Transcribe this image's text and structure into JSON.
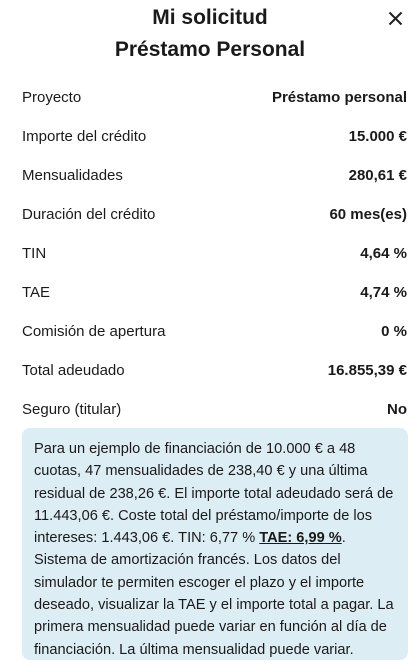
{
  "header": {
    "title": "Mi solicitud",
    "subtitle": "Préstamo Personal"
  },
  "rows": [
    [
      "Proyecto",
      "Préstamo personal"
    ],
    [
      "Importe del crédito",
      "15.000 €"
    ],
    [
      "Mensualidades",
      "280,61 €"
    ],
    [
      "Duración del crédito",
      "60 mes(es)"
    ],
    [
      "TIN",
      "4,64 %"
    ],
    [
      "TAE",
      "4,74 %"
    ],
    [
      "Comisión de apertura",
      "0 %"
    ],
    [
      "Total adeudado",
      "16.855,39 €"
    ],
    [
      "Seguro (titular)",
      "No"
    ]
  ],
  "note": {
    "before": "Para un ejemplo de financiación de 10.000 € a 48 cuotas, 47 mensualidades de 238,40 € y una última residual de 238,26 €. El importe total adeudado será de 11.443,06 €. Coste total del préstamo/importe de los intereses: 1.443,06 €. TIN: 6,77 % ",
    "emphasis": "TAE: 6,99 %",
    "after": ". Sistema de amortización francés. Los datos del simulador te permiten escoger el plazo y el importe deseado, visualizar la TAE y el importe total a pagar. La primera mensualidad puede variar en función al día de financiación. La última mensualidad puede variar."
  }
}
